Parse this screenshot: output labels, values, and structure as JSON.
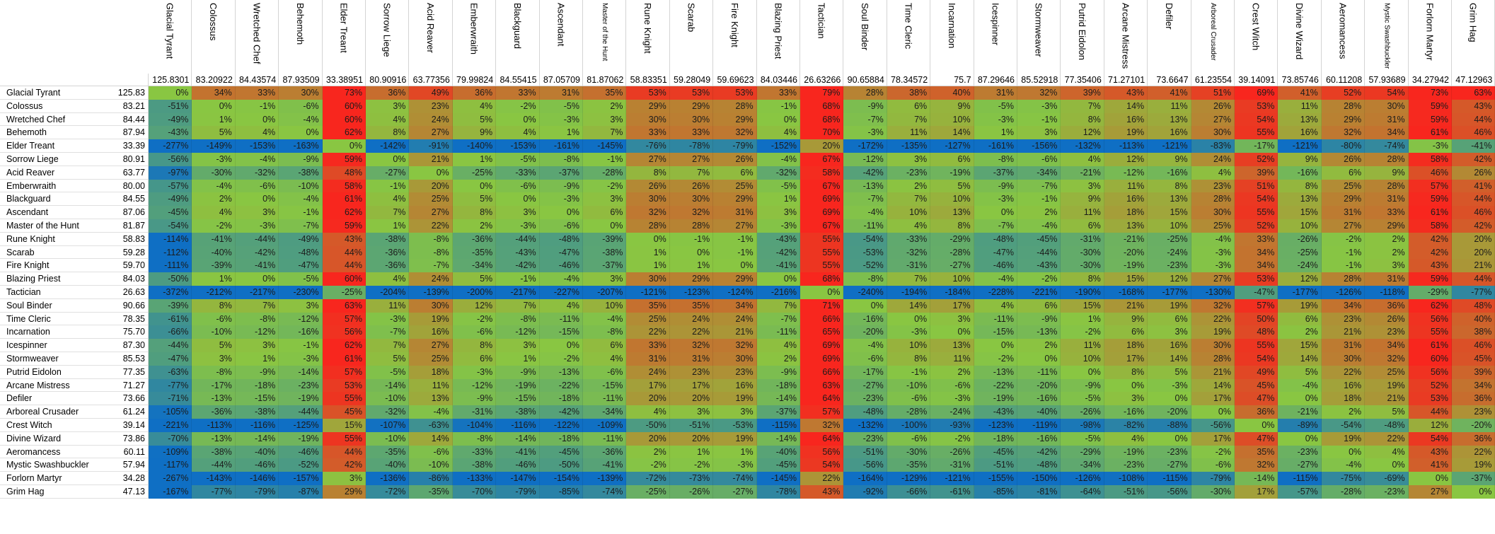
{
  "columns": [
    {
      "name": "Glacial Tyrant",
      "value": "125.8301"
    },
    {
      "name": "Colossus",
      "value": "83.20922"
    },
    {
      "name": "Wretched Chef",
      "value": "84.43574"
    },
    {
      "name": "Behemoth",
      "value": "87.93509"
    },
    {
      "name": "Elder Treant",
      "value": "33.38951"
    },
    {
      "name": "Sorrow Liege",
      "value": "80.90916"
    },
    {
      "name": "Acid Reaver",
      "value": "63.77356"
    },
    {
      "name": "Emberwraith",
      "value": "79.99824"
    },
    {
      "name": "Blackguard",
      "value": "84.55415"
    },
    {
      "name": "Ascendant",
      "value": "87.05709"
    },
    {
      "name": "Master of the Hunt",
      "value": "81.87062"
    },
    {
      "name": "Rune Knight",
      "value": "58.83351"
    },
    {
      "name": "Scarab",
      "value": "59.28049"
    },
    {
      "name": "Fire Knight",
      "value": "59.69623"
    },
    {
      "name": "Blazing Priest",
      "value": "84.03446"
    },
    {
      "name": "Tactician",
      "value": "26.63266"
    },
    {
      "name": "Soul Binder",
      "value": "90.65884"
    },
    {
      "name": "Time Cleric",
      "value": "78.34572"
    },
    {
      "name": "Incarnation",
      "value": "75.7"
    },
    {
      "name": "Icespinner",
      "value": "87.29646"
    },
    {
      "name": "Stormweaver",
      "value": "85.52918"
    },
    {
      "name": "Putrid Eidolon",
      "value": "77.35406"
    },
    {
      "name": "Arcane Mistress",
      "value": "71.27101"
    },
    {
      "name": "Defiler",
      "value": "73.6647"
    },
    {
      "name": "Arboreal Crusader",
      "value": "61.23554"
    },
    {
      "name": "Crest Witch",
      "value": "39.14091"
    },
    {
      "name": "Divine Wizard",
      "value": "73.85746"
    },
    {
      "name": "Aeromancess",
      "value": "60.11208"
    },
    {
      "name": "Mystic Swashbuckler",
      "value": "57.93689"
    },
    {
      "name": "Forlorn Martyr",
      "value": "34.27942"
    },
    {
      "name": "Grim Hag",
      "value": "47.12963"
    }
  ],
  "rows": [
    {
      "name": "Glacial Tyrant",
      "value": "125.83",
      "cells": [
        "0%",
        "34%",
        "33%",
        "30%",
        "73%",
        "36%",
        "49%",
        "36%",
        "33%",
        "31%",
        "35%",
        "53%",
        "53%",
        "53%",
        "33%",
        "79%",
        "28%",
        "38%",
        "40%",
        "31%",
        "32%",
        "39%",
        "43%",
        "41%",
        "51%",
        "69%",
        "41%",
        "52%",
        "54%",
        "73%",
        "63%"
      ]
    },
    {
      "name": "Colossus",
      "value": "83.21",
      "cells": [
        "-51%",
        "0%",
        "-1%",
        "-6%",
        "60%",
        "3%",
        "23%",
        "4%",
        "-2%",
        "-5%",
        "2%",
        "29%",
        "29%",
        "28%",
        "-1%",
        "68%",
        "-9%",
        "6%",
        "9%",
        "-5%",
        "-3%",
        "7%",
        "14%",
        "11%",
        "26%",
        "53%",
        "11%",
        "28%",
        "30%",
        "59%",
        "43%"
      ]
    },
    {
      "name": "Wretched Chef",
      "value": "84.44",
      "cells": [
        "-49%",
        "1%",
        "0%",
        "-4%",
        "60%",
        "4%",
        "24%",
        "5%",
        "0%",
        "-3%",
        "3%",
        "30%",
        "30%",
        "29%",
        "0%",
        "68%",
        "-7%",
        "7%",
        "10%",
        "-3%",
        "-1%",
        "8%",
        "16%",
        "13%",
        "27%",
        "54%",
        "13%",
        "29%",
        "31%",
        "59%",
        "44%"
      ]
    },
    {
      "name": "Behemoth",
      "value": "87.94",
      "cells": [
        "-43%",
        "5%",
        "4%",
        "0%",
        "62%",
        "8%",
        "27%",
        "9%",
        "4%",
        "1%",
        "7%",
        "33%",
        "33%",
        "32%",
        "4%",
        "70%",
        "-3%",
        "11%",
        "14%",
        "1%",
        "3%",
        "12%",
        "19%",
        "16%",
        "30%",
        "55%",
        "16%",
        "32%",
        "34%",
        "61%",
        "46%"
      ]
    },
    {
      "name": "Elder Treant",
      "value": "33.39",
      "cells": [
        "-277%",
        "-149%",
        "-153%",
        "-163%",
        "0%",
        "-142%",
        "-91%",
        "-140%",
        "-153%",
        "-161%",
        "-145%",
        "-76%",
        "-78%",
        "-79%",
        "-152%",
        "20%",
        "-172%",
        "-135%",
        "-127%",
        "-161%",
        "-156%",
        "-132%",
        "-113%",
        "-121%",
        "-83%",
        "-17%",
        "-121%",
        "-80%",
        "-74%",
        "-3%",
        "-41%"
      ]
    },
    {
      "name": "Sorrow Liege",
      "value": "80.91",
      "cells": [
        "-56%",
        "-3%",
        "-4%",
        "-9%",
        "59%",
        "0%",
        "21%",
        "1%",
        "-5%",
        "-8%",
        "-1%",
        "27%",
        "27%",
        "26%",
        "-4%",
        "67%",
        "-12%",
        "3%",
        "6%",
        "-8%",
        "-6%",
        "4%",
        "12%",
        "9%",
        "24%",
        "52%",
        "9%",
        "26%",
        "28%",
        "58%",
        "42%"
      ]
    },
    {
      "name": "Acid Reaver",
      "value": "63.77",
      "cells": [
        "-97%",
        "-30%",
        "-32%",
        "-38%",
        "48%",
        "-27%",
        "0%",
        "-25%",
        "-33%",
        "-37%",
        "-28%",
        "8%",
        "7%",
        "6%",
        "-32%",
        "58%",
        "-42%",
        "-23%",
        "-19%",
        "-37%",
        "-34%",
        "-21%",
        "-12%",
        "-16%",
        "4%",
        "39%",
        "-16%",
        "6%",
        "9%",
        "46%",
        "26%"
      ]
    },
    {
      "name": "Emberwraith",
      "value": "80.00",
      "cells": [
        "-57%",
        "-4%",
        "-6%",
        "-10%",
        "58%",
        "-1%",
        "20%",
        "0%",
        "-6%",
        "-9%",
        "-2%",
        "26%",
        "26%",
        "25%",
        "-5%",
        "67%",
        "-13%",
        "2%",
        "5%",
        "-9%",
        "-7%",
        "3%",
        "11%",
        "8%",
        "23%",
        "51%",
        "8%",
        "25%",
        "28%",
        "57%",
        "41%"
      ]
    },
    {
      "name": "Blackguard",
      "value": "84.55",
      "cells": [
        "-49%",
        "2%",
        "0%",
        "-4%",
        "61%",
        "4%",
        "25%",
        "5%",
        "0%",
        "-3%",
        "3%",
        "30%",
        "30%",
        "29%",
        "1%",
        "69%",
        "-7%",
        "7%",
        "10%",
        "-3%",
        "-1%",
        "9%",
        "16%",
        "13%",
        "28%",
        "54%",
        "13%",
        "29%",
        "31%",
        "59%",
        "44%"
      ]
    },
    {
      "name": "Ascendant",
      "value": "87.06",
      "cells": [
        "-45%",
        "4%",
        "3%",
        "-1%",
        "62%",
        "7%",
        "27%",
        "8%",
        "3%",
        "0%",
        "6%",
        "32%",
        "32%",
        "31%",
        "3%",
        "69%",
        "-4%",
        "10%",
        "13%",
        "0%",
        "2%",
        "11%",
        "18%",
        "15%",
        "30%",
        "55%",
        "15%",
        "31%",
        "33%",
        "61%",
        "46%"
      ]
    },
    {
      "name": "Master of the Hunt",
      "value": "81.87",
      "cells": [
        "-54%",
        "-2%",
        "-3%",
        "-7%",
        "59%",
        "1%",
        "22%",
        "2%",
        "-3%",
        "-6%",
        "0%",
        "28%",
        "28%",
        "27%",
        "-3%",
        "67%",
        "-11%",
        "4%",
        "8%",
        "-7%",
        "-4%",
        "6%",
        "13%",
        "10%",
        "25%",
        "52%",
        "10%",
        "27%",
        "29%",
        "58%",
        "42%"
      ]
    },
    {
      "name": "Rune Knight",
      "value": "58.83",
      "cells": [
        "-114%",
        "-41%",
        "-44%",
        "-49%",
        "43%",
        "-38%",
        "-8%",
        "-36%",
        "-44%",
        "-48%",
        "-39%",
        "0%",
        "-1%",
        "-1%",
        "-43%",
        "55%",
        "-54%",
        "-33%",
        "-29%",
        "-48%",
        "-45%",
        "-31%",
        "-21%",
        "-25%",
        "-4%",
        "33%",
        "-26%",
        "-2%",
        "2%",
        "42%",
        "20%"
      ]
    },
    {
      "name": "Scarab",
      "value": "59.28",
      "cells": [
        "-112%",
        "-40%",
        "-42%",
        "-48%",
        "44%",
        "-36%",
        "-8%",
        "-35%",
        "-43%",
        "-47%",
        "-38%",
        "1%",
        "0%",
        "-1%",
        "-42%",
        "55%",
        "-53%",
        "-32%",
        "-28%",
        "-47%",
        "-44%",
        "-30%",
        "-20%",
        "-24%",
        "-3%",
        "34%",
        "-25%",
        "-1%",
        "2%",
        "42%",
        "20%"
      ]
    },
    {
      "name": "Fire Knight",
      "value": "59.70",
      "cells": [
        "-111%",
        "-39%",
        "-41%",
        "-47%",
        "44%",
        "-36%",
        "-7%",
        "-34%",
        "-42%",
        "-46%",
        "-37%",
        "1%",
        "1%",
        "0%",
        "-41%",
        "55%",
        "-52%",
        "-31%",
        "-27%",
        "-46%",
        "-43%",
        "-30%",
        "-19%",
        "-23%",
        "-3%",
        "34%",
        "-24%",
        "-1%",
        "3%",
        "43%",
        "21%"
      ]
    },
    {
      "name": "Blazing Priest",
      "value": "84.03",
      "cells": [
        "-50%",
        "1%",
        "0%",
        "-5%",
        "60%",
        "4%",
        "24%",
        "5%",
        "-1%",
        "-4%",
        "3%",
        "30%",
        "29%",
        "29%",
        "0%",
        "68%",
        "-8%",
        "7%",
        "10%",
        "-4%",
        "-2%",
        "8%",
        "15%",
        "12%",
        "27%",
        "53%",
        "12%",
        "28%",
        "31%",
        "59%",
        "44%"
      ]
    },
    {
      "name": "Tactician",
      "value": "26.63",
      "cells": [
        "-372%",
        "-212%",
        "-217%",
        "-230%",
        "-25%",
        "-204%",
        "-139%",
        "-200%",
        "-217%",
        "-227%",
        "-207%",
        "-121%",
        "-123%",
        "-124%",
        "-216%",
        "0%",
        "-240%",
        "-194%",
        "-184%",
        "-228%",
        "-221%",
        "-190%",
        "-168%",
        "-177%",
        "-130%",
        "-47%",
        "-177%",
        "-126%",
        "-118%",
        "-29%",
        "-77%"
      ]
    },
    {
      "name": "Soul Binder",
      "value": "90.66",
      "cells": [
        "-39%",
        "8%",
        "7%",
        "3%",
        "63%",
        "11%",
        "30%",
        "12%",
        "7%",
        "4%",
        "10%",
        "35%",
        "35%",
        "34%",
        "7%",
        "71%",
        "0%",
        "14%",
        "17%",
        "4%",
        "6%",
        "15%",
        "21%",
        "19%",
        "32%",
        "57%",
        "19%",
        "34%",
        "36%",
        "62%",
        "48%"
      ]
    },
    {
      "name": "Time Cleric",
      "value": "78.35",
      "cells": [
        "-61%",
        "-6%",
        "-8%",
        "-12%",
        "57%",
        "-3%",
        "19%",
        "-2%",
        "-8%",
        "-11%",
        "-4%",
        "25%",
        "24%",
        "24%",
        "-7%",
        "66%",
        "-16%",
        "0%",
        "3%",
        "-11%",
        "-9%",
        "1%",
        "9%",
        "6%",
        "22%",
        "50%",
        "6%",
        "23%",
        "26%",
        "56%",
        "40%"
      ]
    },
    {
      "name": "Incarnation",
      "value": "75.70",
      "cells": [
        "-66%",
        "-10%",
        "-12%",
        "-16%",
        "56%",
        "-7%",
        "16%",
        "-6%",
        "-12%",
        "-15%",
        "-8%",
        "22%",
        "22%",
        "21%",
        "-11%",
        "65%",
        "-20%",
        "-3%",
        "0%",
        "-15%",
        "-13%",
        "-2%",
        "6%",
        "3%",
        "19%",
        "48%",
        "2%",
        "21%",
        "23%",
        "55%",
        "38%"
      ]
    },
    {
      "name": "Icespinner",
      "value": "87.30",
      "cells": [
        "-44%",
        "5%",
        "3%",
        "-1%",
        "62%",
        "7%",
        "27%",
        "8%",
        "3%",
        "0%",
        "6%",
        "33%",
        "32%",
        "32%",
        "4%",
        "69%",
        "-4%",
        "10%",
        "13%",
        "0%",
        "2%",
        "11%",
        "18%",
        "16%",
        "30%",
        "55%",
        "15%",
        "31%",
        "34%",
        "61%",
        "46%"
      ]
    },
    {
      "name": "Stormweaver",
      "value": "85.53",
      "cells": [
        "-47%",
        "3%",
        "1%",
        "-3%",
        "61%",
        "5%",
        "25%",
        "6%",
        "1%",
        "-2%",
        "4%",
        "31%",
        "31%",
        "30%",
        "2%",
        "69%",
        "-6%",
        "8%",
        "11%",
        "-2%",
        "0%",
        "10%",
        "17%",
        "14%",
        "28%",
        "54%",
        "14%",
        "30%",
        "32%",
        "60%",
        "45%"
      ]
    },
    {
      "name": "Putrid Eidolon",
      "value": "77.35",
      "cells": [
        "-63%",
        "-8%",
        "-9%",
        "-14%",
        "57%",
        "-5%",
        "18%",
        "-3%",
        "-9%",
        "-13%",
        "-6%",
        "24%",
        "23%",
        "23%",
        "-9%",
        "66%",
        "-17%",
        "-1%",
        "2%",
        "-13%",
        "-11%",
        "0%",
        "8%",
        "5%",
        "21%",
        "49%",
        "5%",
        "22%",
        "25%",
        "56%",
        "39%"
      ]
    },
    {
      "name": "Arcane Mistress",
      "value": "71.27",
      "cells": [
        "-77%",
        "-17%",
        "-18%",
        "-23%",
        "53%",
        "-14%",
        "11%",
        "-12%",
        "-19%",
        "-22%",
        "-15%",
        "17%",
        "17%",
        "16%",
        "-18%",
        "63%",
        "-27%",
        "-10%",
        "-6%",
        "-22%",
        "-20%",
        "-9%",
        "0%",
        "-3%",
        "14%",
        "45%",
        "-4%",
        "16%",
        "19%",
        "52%",
        "34%"
      ]
    },
    {
      "name": "Defiler",
      "value": "73.66",
      "cells": [
        "-71%",
        "-13%",
        "-15%",
        "-19%",
        "55%",
        "-10%",
        "13%",
        "-9%",
        "-15%",
        "-18%",
        "-11%",
        "20%",
        "20%",
        "19%",
        "-14%",
        "64%",
        "-23%",
        "-6%",
        "-3%",
        "-19%",
        "-16%",
        "-5%",
        "3%",
        "0%",
        "17%",
        "47%",
        "0%",
        "18%",
        "21%",
        "53%",
        "36%"
      ]
    },
    {
      "name": "Arboreal Crusader",
      "value": "61.24",
      "cells": [
        "-105%",
        "-36%",
        "-38%",
        "-44%",
        "45%",
        "-32%",
        "-4%",
        "-31%",
        "-38%",
        "-42%",
        "-34%",
        "4%",
        "3%",
        "3%",
        "-37%",
        "57%",
        "-48%",
        "-28%",
        "-24%",
        "-43%",
        "-40%",
        "-26%",
        "-16%",
        "-20%",
        "0%",
        "36%",
        "-21%",
        "2%",
        "5%",
        "44%",
        "23%"
      ]
    },
    {
      "name": "Crest Witch",
      "value": "39.14",
      "cells": [
        "-221%",
        "-113%",
        "-116%",
        "-125%",
        "15%",
        "-107%",
        "-63%",
        "-104%",
        "-116%",
        "-122%",
        "-109%",
        "-50%",
        "-51%",
        "-53%",
        "-115%",
        "32%",
        "-132%",
        "-100%",
        "-93%",
        "-123%",
        "-119%",
        "-98%",
        "-82%",
        "-88%",
        "-56%",
        "0%",
        "-89%",
        "-54%",
        "-48%",
        "12%",
        "-20%"
      ]
    },
    {
      "name": "Divine Wizard",
      "value": "73.86",
      "cells": [
        "-70%",
        "-13%",
        "-14%",
        "-19%",
        "55%",
        "-10%",
        "14%",
        "-8%",
        "-14%",
        "-18%",
        "-11%",
        "20%",
        "20%",
        "19%",
        "-14%",
        "64%",
        "-23%",
        "-6%",
        "-2%",
        "-18%",
        "-16%",
        "-5%",
        "4%",
        "0%",
        "17%",
        "47%",
        "0%",
        "19%",
        "22%",
        "54%",
        "36%"
      ]
    },
    {
      "name": "Aeromancess",
      "value": "60.11",
      "cells": [
        "-109%",
        "-38%",
        "-40%",
        "-46%",
        "44%",
        "-35%",
        "-6%",
        "-33%",
        "-41%",
        "-45%",
        "-36%",
        "2%",
        "1%",
        "1%",
        "-40%",
        "56%",
        "-51%",
        "-30%",
        "-26%",
        "-45%",
        "-42%",
        "-29%",
        "-19%",
        "-23%",
        "-2%",
        "35%",
        "-23%",
        "0%",
        "4%",
        "43%",
        "22%"
      ]
    },
    {
      "name": "Mystic Swashbuckler",
      "value": "57.94",
      "cells": [
        "-117%",
        "-44%",
        "-46%",
        "-52%",
        "42%",
        "-40%",
        "-10%",
        "-38%",
        "-46%",
        "-50%",
        "-41%",
        "-2%",
        "-2%",
        "-3%",
        "-45%",
        "54%",
        "-56%",
        "-35%",
        "-31%",
        "-51%",
        "-48%",
        "-34%",
        "-23%",
        "-27%",
        "-6%",
        "32%",
        "-27%",
        "-4%",
        "0%",
        "41%",
        "19%"
      ]
    },
    {
      "name": "Forlorn Martyr",
      "value": "34.28",
      "cells": [
        "-267%",
        "-143%",
        "-146%",
        "-157%",
        "3%",
        "-136%",
        "-86%",
        "-133%",
        "-147%",
        "-154%",
        "-139%",
        "-72%",
        "-73%",
        "-74%",
        "-145%",
        "22%",
        "-164%",
        "-129%",
        "-121%",
        "-155%",
        "-150%",
        "-126%",
        "-108%",
        "-115%",
        "-79%",
        "-14%",
        "-115%",
        "-75%",
        "-69%",
        "0%",
        "-37%"
      ]
    },
    {
      "name": "Grim Hag",
      "value": "47.13",
      "cells": [
        "-167%",
        "-77%",
        "-79%",
        "-87%",
        "29%",
        "-72%",
        "-35%",
        "-70%",
        "-79%",
        "-85%",
        "-74%",
        "-25%",
        "-26%",
        "-27%",
        "-78%",
        "43%",
        "-92%",
        "-66%",
        "-61%",
        "-85%",
        "-81%",
        "-64%",
        "-51%",
        "-56%",
        "-30%",
        "17%",
        "-57%",
        "-28%",
        "-23%",
        "27%",
        "0%"
      ]
    }
  ],
  "colors": {
    "high": "#f8261e",
    "mid": "#89c642",
    "low": "#0f6fc4",
    "grid_line": "#d4d4d4"
  }
}
